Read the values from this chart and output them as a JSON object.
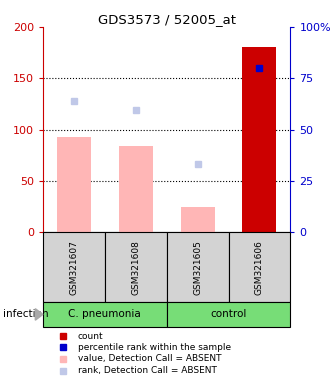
{
  "title": "GDS3573 / 52005_at",
  "samples": [
    "GSM321607",
    "GSM321608",
    "GSM321605",
    "GSM321606"
  ],
  "bar_values": [
    93,
    84,
    25,
    180
  ],
  "bar_is_absent": [
    true,
    true,
    true,
    false
  ],
  "bar_color_absent": "#ffb6b6",
  "bar_color_present": "#cc0000",
  "rank_squares": [
    128,
    119,
    66,
    160
  ],
  "rank_is_absent": [
    true,
    true,
    true,
    false
  ],
  "rank_color_absent": "#c0c8e8",
  "rank_color_present": "#0000cc",
  "ylim_left": [
    0,
    200
  ],
  "ylim_right": [
    0,
    100
  ],
  "yticks_left": [
    0,
    50,
    100,
    150,
    200
  ],
  "yticks_right": [
    0,
    25,
    50,
    75,
    100
  ],
  "ytick_labels_right": [
    "0",
    "25",
    "50",
    "75",
    "100%"
  ],
  "dotted_lines": [
    50,
    100,
    150
  ],
  "left_axis_color": "#cc0000",
  "right_axis_color": "#0000cc",
  "group_label": "infection",
  "group_spans": [
    {
      "label": "C. pneumonia",
      "start": 0,
      "end": 2,
      "color": "#77dd77"
    },
    {
      "label": "control",
      "start": 2,
      "end": 4,
      "color": "#77dd77"
    }
  ],
  "sample_box_color": "#d3d3d3",
  "legend_items": [
    {
      "label": "count",
      "color": "#cc0000"
    },
    {
      "label": "percentile rank within the sample",
      "color": "#0000cc"
    },
    {
      "label": "value, Detection Call = ABSENT",
      "color": "#ffb6b6"
    },
    {
      "label": "rank, Detection Call = ABSENT",
      "color": "#c0c8e8"
    }
  ],
  "bar_width": 0.55,
  "figsize": [
    3.3,
    3.84
  ],
  "dpi": 100
}
